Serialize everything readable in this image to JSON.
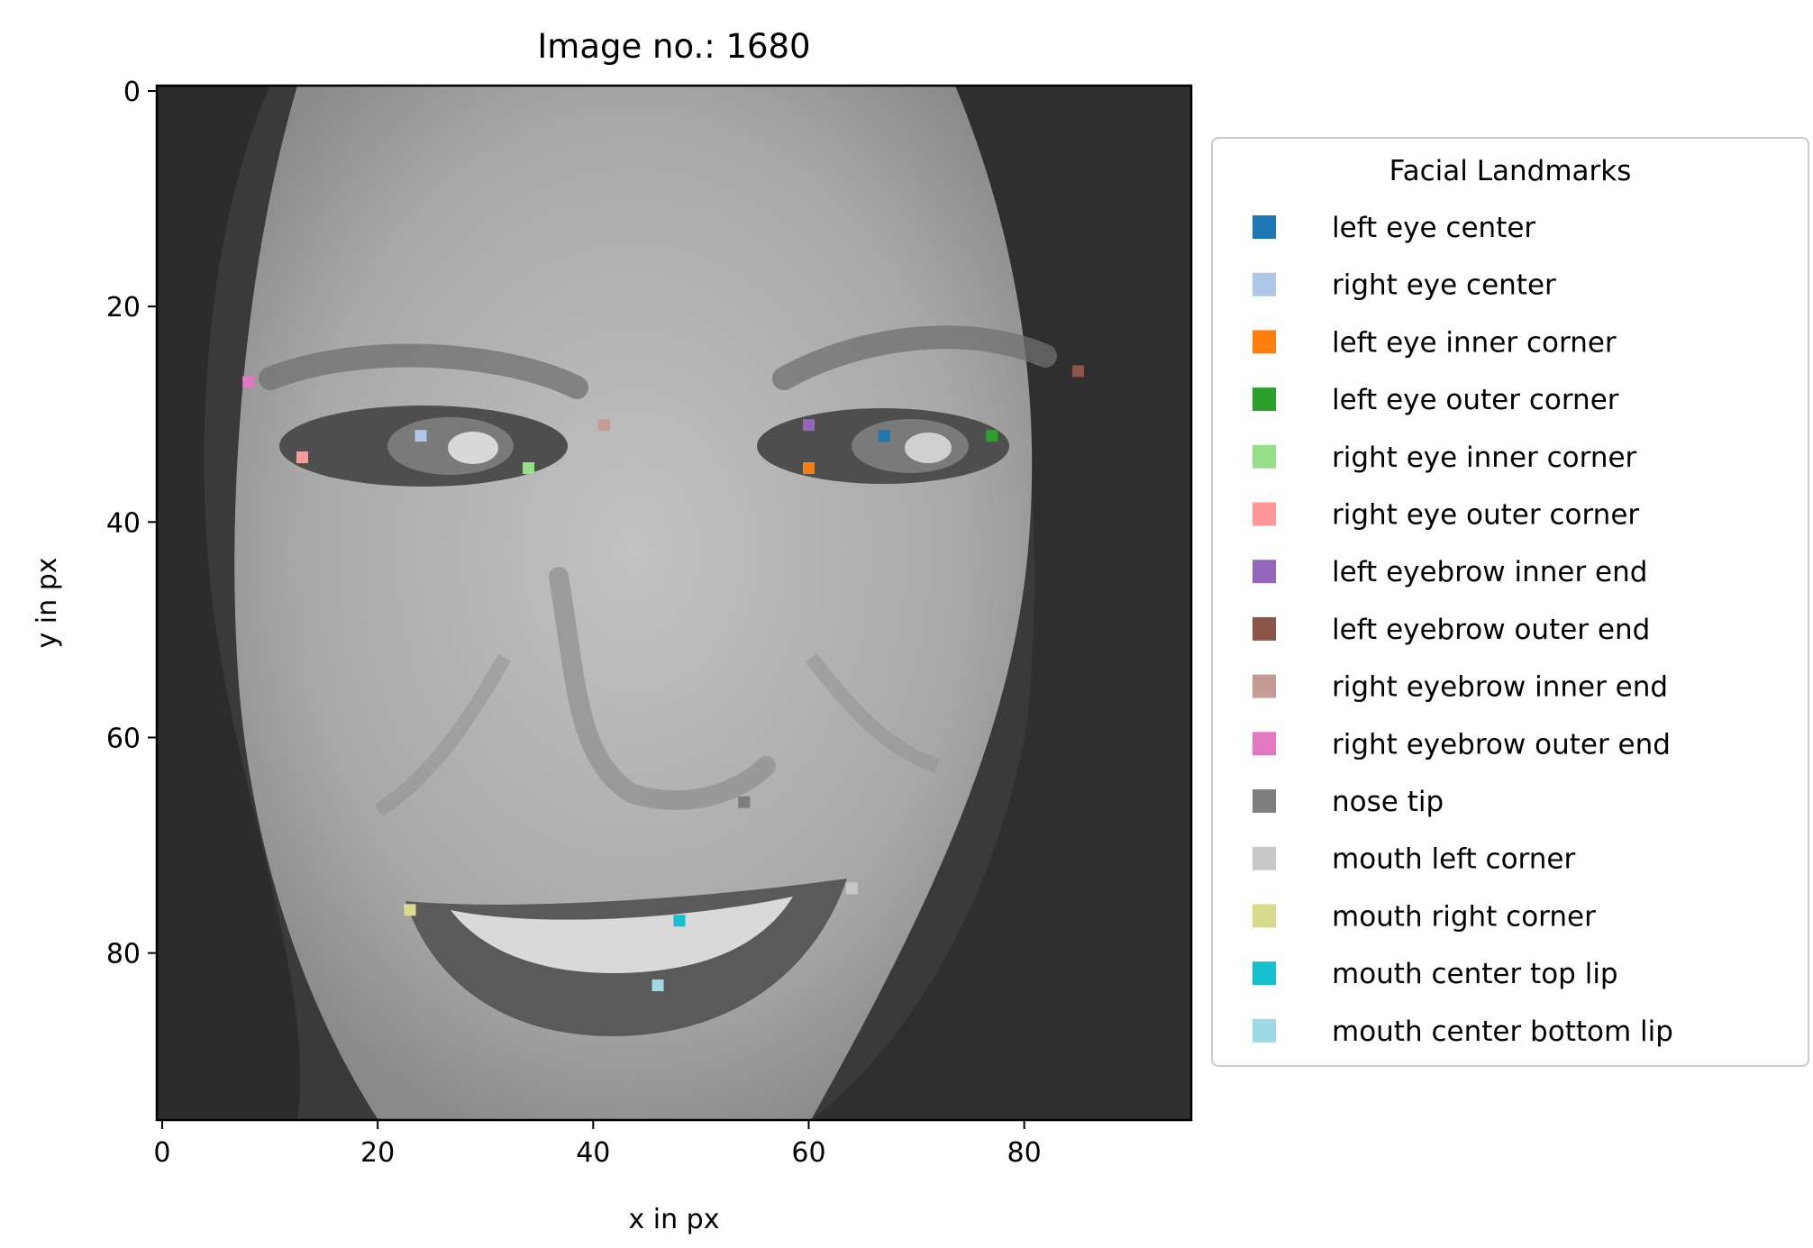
{
  "chart_data": {
    "type": "scatter",
    "title": "Image no.: 1680",
    "xlabel": "x in px",
    "ylabel": "y in px",
    "xlim": [
      -0.5,
      95.5
    ],
    "ylim": [
      95.5,
      -0.5
    ],
    "y_axis_inverted": true,
    "x_ticks": [
      0,
      20,
      40,
      60,
      80
    ],
    "y_ticks": [
      0,
      20,
      40,
      60,
      80
    ],
    "x_tick_labels": [
      "0",
      "20",
      "40",
      "60",
      "80"
    ],
    "y_tick_labels": [
      "0",
      "20",
      "40",
      "60",
      "80"
    ],
    "grid": false,
    "background_image": "grayscale-face-photo",
    "legend": {
      "title": "Facial Landmarks",
      "placement": "outside-right"
    },
    "series": [
      {
        "name": "left eye center",
        "color": "#1f77b4",
        "x": 67,
        "y": 32
      },
      {
        "name": "right eye center",
        "color": "#aec7e8",
        "x": 24,
        "y": 32
      },
      {
        "name": "left eye inner corner",
        "color": "#ff7f0e",
        "x": 60,
        "y": 35
      },
      {
        "name": "left eye outer corner",
        "color": "#2ca02c",
        "x": 77,
        "y": 32
      },
      {
        "name": "right eye inner corner",
        "color": "#98df8a",
        "x": 34,
        "y": 35
      },
      {
        "name": "right eye outer corner",
        "color": "#ff9896",
        "x": 13,
        "y": 34
      },
      {
        "name": "left eyebrow inner end",
        "color": "#9467bd",
        "x": 60,
        "y": 31
      },
      {
        "name": "left eyebrow outer end",
        "color": "#8c564b",
        "x": 85,
        "y": 26
      },
      {
        "name": "right eyebrow inner end",
        "color": "#c49c94",
        "x": 41,
        "y": 31
      },
      {
        "name": "right eyebrow outer end",
        "color": "#e377c2",
        "x": 8,
        "y": 27
      },
      {
        "name": "nose tip",
        "color": "#7f7f7f",
        "x": 54,
        "y": 66
      },
      {
        "name": "mouth left corner",
        "color": "#c7c7c7",
        "x": 64,
        "y": 74
      },
      {
        "name": "mouth right corner",
        "color": "#dbdb8d",
        "x": 23,
        "y": 76
      },
      {
        "name": "mouth center top lip",
        "color": "#17becf",
        "x": 48,
        "y": 77
      },
      {
        "name": "mouth center bottom lip",
        "color": "#9edae5",
        "x": 46,
        "y": 83
      }
    ]
  }
}
